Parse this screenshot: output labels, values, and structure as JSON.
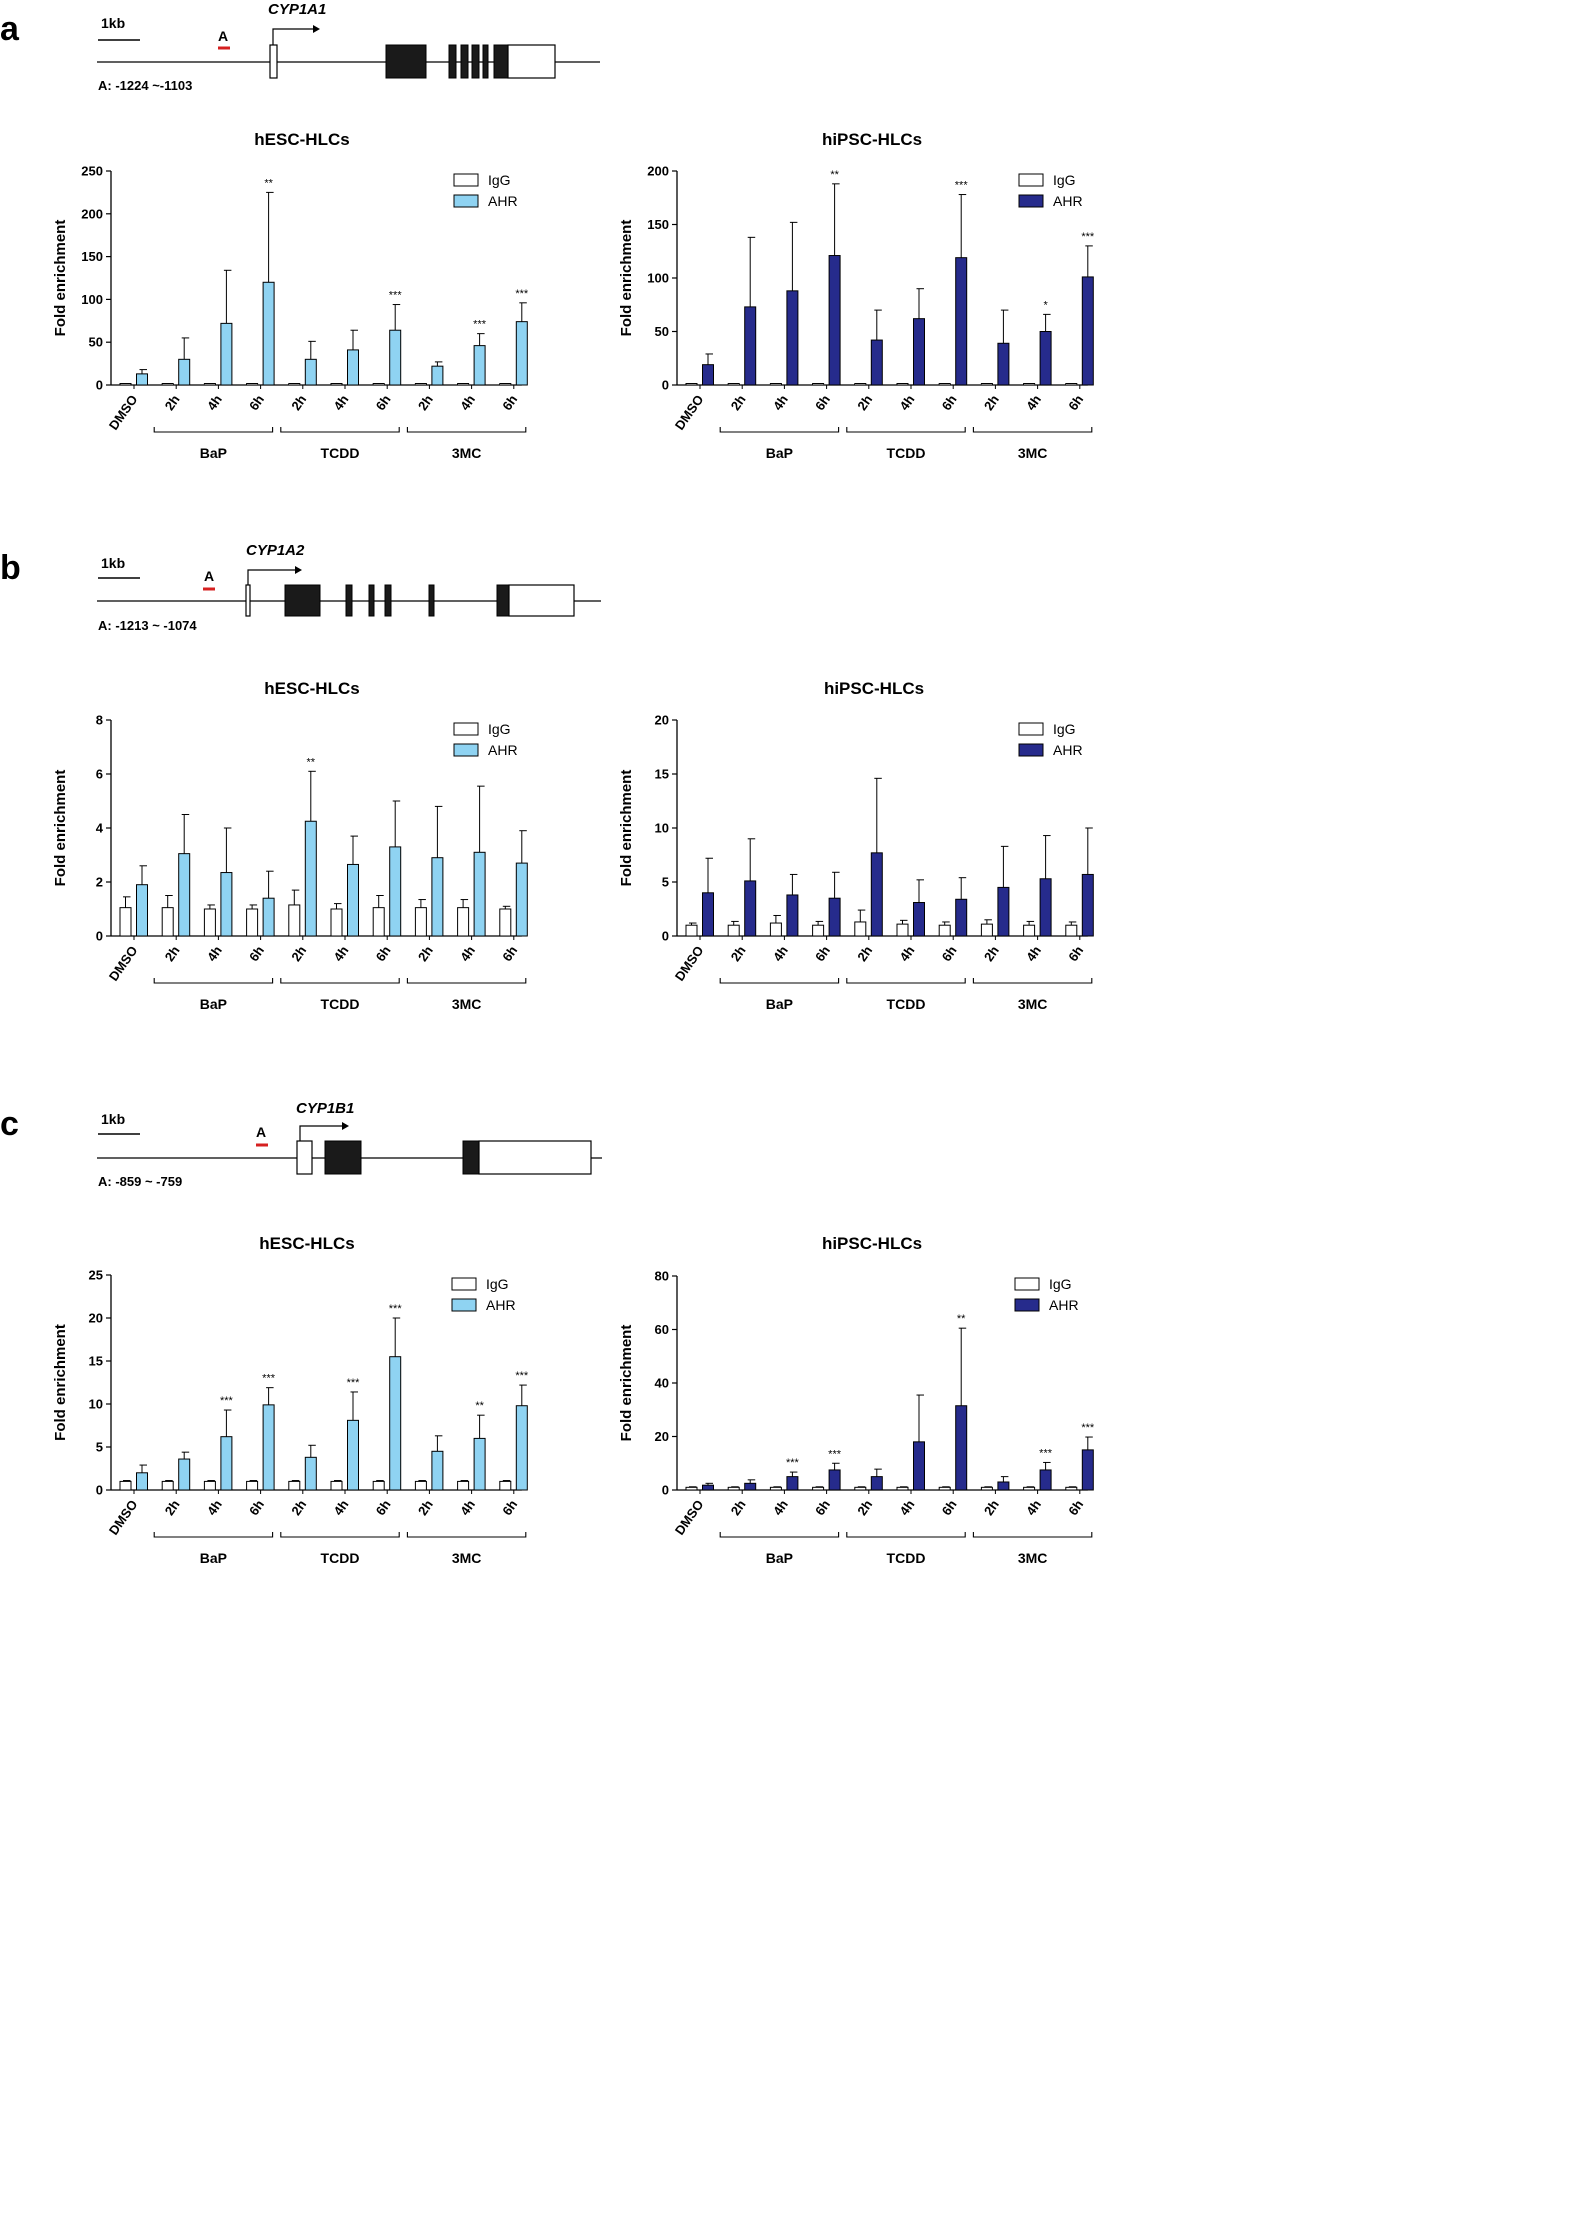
{
  "panels": [
    {
      "letter": "a",
      "gene": "CYP1A1",
      "scale_label": "1kb",
      "region_label": "A",
      "region_coords": "A: -1224 ~-1103"
    },
    {
      "letter": "b",
      "gene": "CYP1A2",
      "scale_label": "1kb",
      "region_label": "A",
      "region_coords": "A: -1213 ~ -1074"
    },
    {
      "letter": "c",
      "gene": "CYP1B1",
      "scale_label": "1kb",
      "region_label": "A",
      "region_coords": "A: -859 ~ -759"
    }
  ],
  "colors": {
    "igg": "#ffffff",
    "ahr_hesc": "#8fd3f2",
    "ahr_hipsc": "#262b8c",
    "exon": "#1a1a1a",
    "region_marker": "#d62020"
  },
  "chart_data": [
    {
      "type": "bar",
      "panel": "a",
      "title": "hESC-HLCs",
      "ylabel": "Fold enrichment",
      "ylim": [
        0,
        250
      ],
      "yticks": [
        "0",
        "50",
        "100",
        "150",
        "200",
        "250"
      ],
      "categories": [
        "DMSO",
        "2h",
        "4h",
        "6h",
        "2h",
        "4h",
        "6h",
        "2h",
        "4h",
        "6h"
      ],
      "groups": [
        {
          "label": "BaP",
          "from": 1,
          "to": 3
        },
        {
          "label": "TCDD",
          "from": 4,
          "to": 6
        },
        {
          "label": "3MC",
          "from": 7,
          "to": 9
        }
      ],
      "series": [
        {
          "name": "IgG",
          "values": [
            1,
            1,
            1,
            1,
            1,
            1,
            1,
            1,
            1,
            1
          ],
          "errors": [
            0,
            0,
            0,
            0,
            0,
            0,
            0,
            0,
            0,
            0
          ]
        },
        {
          "name": "AHR",
          "values": [
            13,
            30,
            72,
            120,
            30,
            41,
            64,
            22,
            46,
            74
          ],
          "errors": [
            5,
            25,
            62,
            105,
            21,
            23,
            30,
            5,
            14,
            22
          ]
        }
      ],
      "significance": [
        "",
        "",
        "",
        "**",
        "",
        "",
        "***",
        "",
        "***",
        "***"
      ]
    },
    {
      "type": "bar",
      "panel": "a",
      "title": "hiPSC-HLCs",
      "ylabel": "Fold enrichment",
      "ylim": [
        0,
        200
      ],
      "yticks": [
        "0",
        "50",
        "100",
        "150",
        "200"
      ],
      "categories": [
        "DMSO",
        "2h",
        "4h",
        "6h",
        "2h",
        "4h",
        "6h",
        "2h",
        "4h",
        "6h"
      ],
      "groups": [
        {
          "label": "BaP",
          "from": 1,
          "to": 3
        },
        {
          "label": "TCDD",
          "from": 4,
          "to": 6
        },
        {
          "label": "3MC",
          "from": 7,
          "to": 9
        }
      ],
      "series": [
        {
          "name": "IgG",
          "values": [
            1,
            1,
            1,
            1,
            1,
            1,
            1,
            1,
            1,
            1
          ],
          "errors": [
            0,
            0,
            0,
            0,
            0,
            0,
            0,
            0,
            0,
            0
          ]
        },
        {
          "name": "AHR",
          "values": [
            19,
            73,
            88,
            121,
            42,
            62,
            119,
            39,
            50,
            101
          ],
          "errors": [
            10,
            65,
            64,
            67,
            28,
            28,
            59,
            31,
            16,
            29
          ]
        }
      ],
      "significance": [
        "",
        "",
        "",
        "**",
        "",
        "",
        "***",
        "",
        "*",
        "***"
      ]
    },
    {
      "type": "bar",
      "panel": "b",
      "title": "hESC-HLCs",
      "ylabel": "Fold enrichment",
      "ylim": [
        0,
        8
      ],
      "yticks": [
        "0",
        "2",
        "4",
        "6",
        "8"
      ],
      "categories": [
        "DMSO",
        "2h",
        "4h",
        "6h",
        "2h",
        "4h",
        "6h",
        "2h",
        "4h",
        "6h"
      ],
      "groups": [
        {
          "label": "BaP",
          "from": 1,
          "to": 3
        },
        {
          "label": "TCDD",
          "from": 4,
          "to": 6
        },
        {
          "label": "3MC",
          "from": 7,
          "to": 9
        }
      ],
      "series": [
        {
          "name": "IgG",
          "values": [
            1.05,
            1.05,
            1.0,
            1.0,
            1.15,
            1.0,
            1.05,
            1.05,
            1.05,
            1.0
          ],
          "errors": [
            0.4,
            0.45,
            0.15,
            0.15,
            0.55,
            0.2,
            0.45,
            0.3,
            0.3,
            0.1
          ]
        },
        {
          "name": "AHR",
          "values": [
            1.9,
            3.05,
            2.35,
            1.4,
            4.25,
            2.65,
            3.3,
            2.9,
            3.1,
            2.7
          ],
          "errors": [
            0.7,
            1.45,
            1.65,
            1.0,
            1.85,
            1.05,
            1.7,
            1.9,
            2.45,
            1.2
          ]
        }
      ],
      "significance": [
        "",
        "",
        "",
        "",
        "**",
        "",
        "",
        "",
        "",
        ""
      ]
    },
    {
      "type": "bar",
      "panel": "b",
      "title": "hiPSC-HLCs",
      "ylabel": "Fold enrichment",
      "ylim": [
        0,
        20
      ],
      "yticks": [
        "0",
        "5",
        "10",
        "15",
        "20"
      ],
      "categories": [
        "DMSO",
        "2h",
        "4h",
        "6h",
        "2h",
        "4h",
        "6h",
        "2h",
        "4h",
        "6h"
      ],
      "groups": [
        {
          "label": "BaP",
          "from": 1,
          "to": 3
        },
        {
          "label": "TCDD",
          "from": 4,
          "to": 6
        },
        {
          "label": "3MC",
          "from": 7,
          "to": 9
        }
      ],
      "series": [
        {
          "name": "IgG",
          "values": [
            1.0,
            1.0,
            1.2,
            1.0,
            1.3,
            1.1,
            1.0,
            1.1,
            1.0,
            1.0
          ],
          "errors": [
            0.2,
            0.35,
            0.7,
            0.35,
            1.1,
            0.35,
            0.3,
            0.4,
            0.35,
            0.3
          ]
        },
        {
          "name": "AHR",
          "values": [
            4.0,
            5.1,
            3.8,
            3.5,
            7.7,
            3.1,
            3.4,
            4.5,
            5.3,
            5.7
          ],
          "errors": [
            3.2,
            3.9,
            1.9,
            2.4,
            6.9,
            2.1,
            2.0,
            3.8,
            4.0,
            4.3
          ]
        }
      ],
      "significance": [
        "",
        "",
        "",
        "",
        "",
        "",
        "",
        "",
        "",
        ""
      ]
    },
    {
      "type": "bar",
      "panel": "c",
      "title": "hESC-HLCs",
      "ylabel": "Fold enrichment",
      "ylim": [
        0,
        25
      ],
      "yticks": [
        "0",
        "5",
        "10",
        "15",
        "20",
        "25"
      ],
      "categories": [
        "DMSO",
        "2h",
        "4h",
        "6h",
        "2h",
        "4h",
        "6h",
        "2h",
        "4h",
        "6h"
      ],
      "groups": [
        {
          "label": "BaP",
          "from": 1,
          "to": 3
        },
        {
          "label": "TCDD",
          "from": 4,
          "to": 6
        },
        {
          "label": "3MC",
          "from": 7,
          "to": 9
        }
      ],
      "series": [
        {
          "name": "IgG",
          "values": [
            1,
            1,
            1,
            1,
            1,
            1,
            1,
            1,
            1,
            1
          ],
          "errors": [
            0.1,
            0.1,
            0.1,
            0.1,
            0.1,
            0.1,
            0.1,
            0.1,
            0.1,
            0.1
          ]
        },
        {
          "name": "AHR",
          "values": [
            2.0,
            3.6,
            6.2,
            9.9,
            3.8,
            8.1,
            15.5,
            4.5,
            6.0,
            9.8
          ],
          "errors": [
            0.9,
            0.8,
            3.1,
            2.0,
            1.4,
            3.3,
            4.5,
            1.8,
            2.7,
            2.4
          ]
        }
      ],
      "significance": [
        "",
        "",
        "***",
        "***",
        "",
        "***",
        "***",
        "",
        "**",
        "***"
      ]
    },
    {
      "type": "bar",
      "panel": "c",
      "title": "hiPSC-HLCs",
      "ylabel": "Fold enrichment",
      "ylim": [
        0,
        80
      ],
      "yticks": [
        "0",
        "20",
        "40",
        "60",
        "80"
      ],
      "categories": [
        "DMSO",
        "2h",
        "4h",
        "6h",
        "2h",
        "4h",
        "6h",
        "2h",
        "4h",
        "6h"
      ],
      "groups": [
        {
          "label": "BaP",
          "from": 1,
          "to": 3
        },
        {
          "label": "TCDD",
          "from": 4,
          "to": 6
        },
        {
          "label": "3MC",
          "from": 7,
          "to": 9
        }
      ],
      "series": [
        {
          "name": "IgG",
          "values": [
            1,
            1,
            1,
            1,
            1,
            1,
            1,
            1,
            1,
            1
          ],
          "errors": [
            0.2,
            0.2,
            0.2,
            0.2,
            0.2,
            0.2,
            0.2,
            0.2,
            0.2,
            0.2
          ]
        },
        {
          "name": "AHR",
          "values": [
            1.8,
            2.5,
            5.0,
            7.5,
            5.0,
            18.0,
            31.5,
            3.0,
            7.5,
            15.0
          ],
          "errors": [
            0.7,
            1.3,
            1.7,
            2.5,
            2.8,
            17.5,
            29.0,
            2.0,
            2.8,
            4.8
          ]
        }
      ],
      "significance": [
        "",
        "",
        "***",
        "***",
        "",
        "",
        "**",
        "",
        "***",
        "***"
      ]
    }
  ]
}
